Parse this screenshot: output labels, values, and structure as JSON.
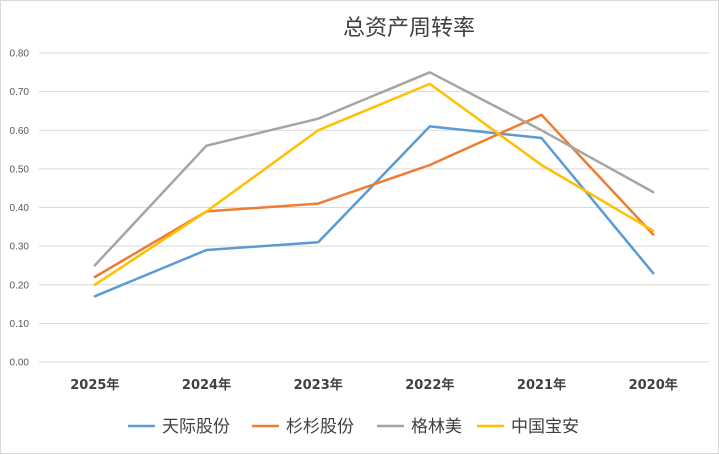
{
  "chart_data": {
    "type": "line",
    "title": "总资产周转率",
    "xlabel": "",
    "ylabel": "",
    "ylim": [
      0,
      0.8
    ],
    "yticks": [
      "0.00",
      "0.10",
      "0.20",
      "0.30",
      "0.40",
      "0.50",
      "0.60",
      "0.70",
      "0.80"
    ],
    "categories": [
      "2025年",
      "2024年",
      "2023年",
      "2022年",
      "2021年",
      "2020年"
    ],
    "grid": true,
    "legend_position": "bottom",
    "series": [
      {
        "name": "天际股份",
        "color": "#5b9bd5",
        "values": [
          0.17,
          0.29,
          0.31,
          0.61,
          0.58,
          0.23
        ]
      },
      {
        "name": "杉杉股份",
        "color": "#ed7d31",
        "values": [
          0.22,
          0.39,
          0.41,
          0.51,
          0.64,
          0.33
        ]
      },
      {
        "name": "格林美",
        "color": "#a5a5a5",
        "values": [
          0.25,
          0.56,
          0.63,
          0.75,
          0.6,
          0.44
        ]
      },
      {
        "name": "中国宝安",
        "color": "#ffc000",
        "values": [
          0.2,
          0.39,
          0.6,
          0.72,
          0.51,
          0.34
        ]
      }
    ]
  }
}
